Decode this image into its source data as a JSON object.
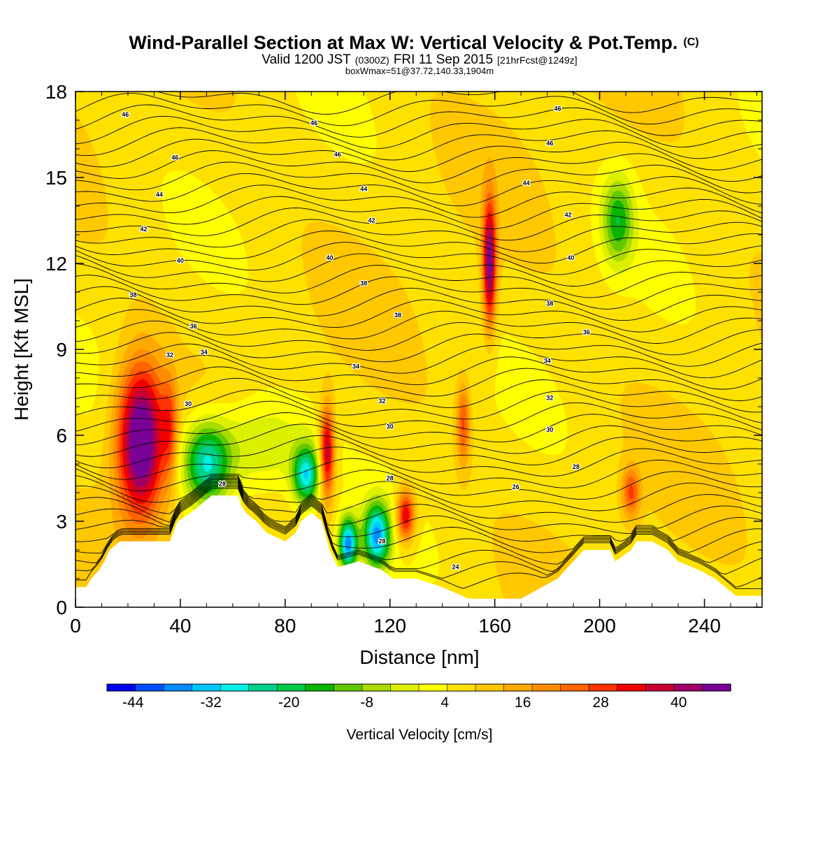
{
  "title": {
    "main": "Wind-Parallel Section at Max W: Vertical Velocity & Pot.Temp.",
    "main_mark": "(C)",
    "valid_prefix": "Valid 1200 JST",
    "valid_zulu": "(0300Z)",
    "valid_date": "FRI 11 Sep 2015",
    "valid_fcst": "[21hrFcst@1249z]",
    "box": "boxWmax=51@37.72,140.33,1904m"
  },
  "chart_data": {
    "type": "heatmap",
    "xlabel": "Distance [nm]",
    "ylabel": "Height [Kft MSL]",
    "xlim": [
      0,
      262
    ],
    "ylim": [
      0,
      18
    ],
    "x_ticks": [
      0,
      40,
      80,
      120,
      160,
      200,
      240
    ],
    "y_ticks": [
      0,
      3,
      6,
      9,
      12,
      15,
      18
    ],
    "x_tick_labels": [
      "0",
      "40",
      "80",
      "120",
      "160",
      "200",
      "240"
    ],
    "y_tick_labels": [
      "0",
      "3",
      "6",
      "9",
      "12",
      "15",
      "18"
    ],
    "colorbar": {
      "label": "Vertical Velocity [cm/s]",
      "min": -48,
      "max": 48,
      "step": 4,
      "tick_values": [
        -44,
        -32,
        -20,
        -8,
        4,
        16,
        28,
        40
      ],
      "tick_labels": [
        "-44",
        "-32",
        "-20",
        "-8",
        "4",
        "16",
        "28",
        "40"
      ],
      "colors": [
        "#0000f0",
        "#0050ff",
        "#008cff",
        "#00c8ff",
        "#00f0e6",
        "#00d28c",
        "#00c846",
        "#0ab400",
        "#64c800",
        "#aadc00",
        "#dcf000",
        "#ffff00",
        "#ffe100",
        "#ffc800",
        "#ffaa00",
        "#ff8c00",
        "#ff6400",
        "#ff3200",
        "#f00000",
        "#c80032",
        "#a00064",
        "#780096"
      ]
    },
    "vertical_velocity_cells": [
      {
        "x": 25,
        "z": 5.8,
        "rx": 9,
        "rz": 2.6,
        "w": 44
      },
      {
        "x": 36,
        "z": 6.2,
        "rx": 3,
        "rz": 1.8,
        "w": 14
      },
      {
        "x": 50,
        "z": 5.0,
        "rx": 9,
        "rz": 1.4,
        "w": -30
      },
      {
        "x": 70,
        "z": 5.6,
        "rx": 20,
        "rz": 1.8,
        "w": -12
      },
      {
        "x": 88,
        "z": 4.6,
        "rx": 5,
        "rz": 1.0,
        "w": -32
      },
      {
        "x": 96,
        "z": 5.4,
        "rx": 2.8,
        "rz": 1.6,
        "w": 32
      },
      {
        "x": 104,
        "z": 2.2,
        "rx": 3.5,
        "rz": 0.9,
        "w": -40
      },
      {
        "x": 115,
        "z": 2.5,
        "rx": 5,
        "rz": 1.1,
        "w": -38
      },
      {
        "x": 126,
        "z": 3.2,
        "rx": 3.5,
        "rz": 0.9,
        "w": 28
      },
      {
        "x": 158,
        "z": 12.0,
        "rx": 2.5,
        "rz": 2.2,
        "w": 36
      },
      {
        "x": 148,
        "z": 6.4,
        "rx": 2.5,
        "rz": 1.4,
        "w": 18
      },
      {
        "x": 207,
        "z": 13.5,
        "rx": 6,
        "rz": 1.5,
        "w": -20
      },
      {
        "x": 212,
        "z": 4.0,
        "rx": 3.5,
        "rz": 0.9,
        "w": 18
      }
    ],
    "terrain_heights": [
      [
        0,
        0.7
      ],
      [
        4,
        0.7
      ],
      [
        6,
        1.0
      ],
      [
        9,
        1.3
      ],
      [
        11,
        1.6
      ],
      [
        13,
        2.0
      ],
      [
        17,
        2.3
      ],
      [
        36,
        2.3
      ],
      [
        39,
        3.0
      ],
      [
        44,
        3.3
      ],
      [
        48,
        3.6
      ],
      [
        52,
        3.9
      ],
      [
        62,
        3.9
      ],
      [
        63,
        3.6
      ],
      [
        65,
        3.3
      ],
      [
        69,
        3.0
      ],
      [
        73,
        2.6
      ],
      [
        80,
        2.3
      ],
      [
        84,
        2.6
      ],
      [
        86,
        3.0
      ],
      [
        90,
        3.3
      ],
      [
        94,
        3.0
      ],
      [
        97,
        2.0
      ],
      [
        100,
        1.4
      ],
      [
        108,
        1.6
      ],
      [
        117,
        1.3
      ],
      [
        121,
        1.0
      ],
      [
        130,
        1.0
      ],
      [
        140,
        0.7
      ],
      [
        150,
        0.3
      ],
      [
        160,
        0.3
      ],
      [
        170,
        0.3
      ],
      [
        178,
        0.7
      ],
      [
        184,
        1.0
      ],
      [
        190,
        1.6
      ],
      [
        194,
        2.0
      ],
      [
        204,
        2.0
      ],
      [
        206,
        1.6
      ],
      [
        212,
        2.0
      ],
      [
        214,
        2.3
      ],
      [
        220,
        2.3
      ],
      [
        226,
        2.0
      ],
      [
        230,
        1.6
      ],
      [
        238,
        1.3
      ],
      [
        244,
        1.0
      ],
      [
        248,
        0.7
      ],
      [
        252,
        0.4
      ],
      [
        262,
        0.4
      ]
    ],
    "potential_temperature_labels": [
      {
        "text": "46",
        "x": 19,
        "z": 17.2
      },
      {
        "text": "46",
        "x": 38,
        "z": 15.7
      },
      {
        "text": "44",
        "x": 32,
        "z": 14.4
      },
      {
        "text": "42",
        "x": 26,
        "z": 13.2
      },
      {
        "text": "40",
        "x": 40,
        "z": 12.1
      },
      {
        "text": "38",
        "x": 22,
        "z": 10.9
      },
      {
        "text": "36",
        "x": 45,
        "z": 9.8
      },
      {
        "text": "34",
        "x": 49,
        "z": 8.9
      },
      {
        "text": "32",
        "x": 36,
        "z": 8.8
      },
      {
        "text": "30",
        "x": 43,
        "z": 7.1
      },
      {
        "text": "28",
        "x": 56,
        "z": 4.3
      },
      {
        "text": "46",
        "x": 91,
        "z": 16.9
      },
      {
        "text": "46",
        "x": 100,
        "z": 15.8
      },
      {
        "text": "44",
        "x": 110,
        "z": 14.6
      },
      {
        "text": "42",
        "x": 113,
        "z": 13.5
      },
      {
        "text": "40",
        "x": 97,
        "z": 12.2
      },
      {
        "text": "38",
        "x": 110,
        "z": 11.3
      },
      {
        "text": "38",
        "x": 123,
        "z": 10.2
      },
      {
        "text": "34",
        "x": 107,
        "z": 8.4
      },
      {
        "text": "32",
        "x": 117,
        "z": 7.2
      },
      {
        "text": "30",
        "x": 120,
        "z": 6.3
      },
      {
        "text": "28",
        "x": 120,
        "z": 4.5
      },
      {
        "text": "28",
        "x": 117,
        "z": 2.3
      },
      {
        "text": "24",
        "x": 145,
        "z": 1.4
      },
      {
        "text": "46",
        "x": 184,
        "z": 17.4
      },
      {
        "text": "46",
        "x": 181,
        "z": 16.2
      },
      {
        "text": "44",
        "x": 172,
        "z": 14.8
      },
      {
        "text": "42",
        "x": 188,
        "z": 13.7
      },
      {
        "text": "40",
        "x": 189,
        "z": 12.2
      },
      {
        "text": "38",
        "x": 181,
        "z": 10.6
      },
      {
        "text": "36",
        "x": 195,
        "z": 9.6
      },
      {
        "text": "34",
        "x": 180,
        "z": 8.6
      },
      {
        "text": "32",
        "x": 181,
        "z": 7.3
      },
      {
        "text": "30",
        "x": 181,
        "z": 6.2
      },
      {
        "text": "28",
        "x": 191,
        "z": 4.9
      },
      {
        "text": "26",
        "x": 168,
        "z": 4.2
      }
    ]
  }
}
